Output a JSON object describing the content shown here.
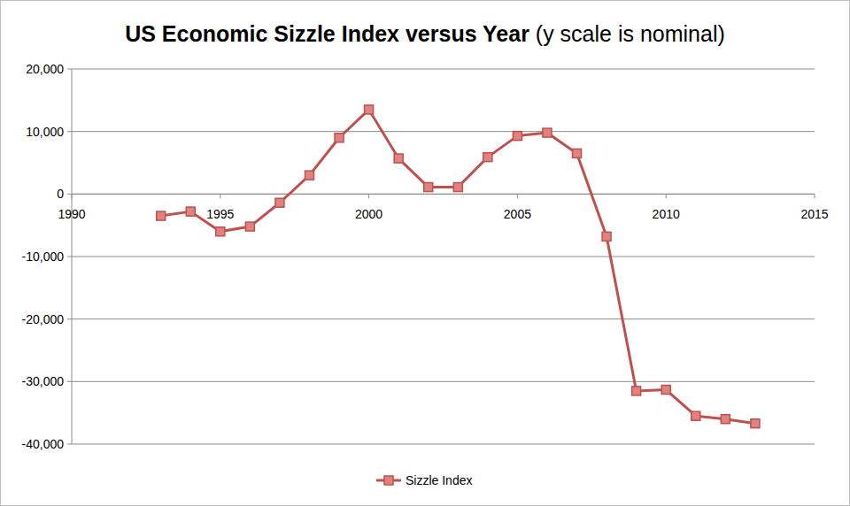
{
  "chart_data": {
    "type": "line",
    "title": "US Economic Sizzle Index versus Year",
    "subtitle": "(y scale is nominal)",
    "x": [
      1993,
      1994,
      1995,
      1996,
      1997,
      1998,
      1999,
      2000,
      2001,
      2002,
      2003,
      2004,
      2005,
      2006,
      2007,
      2008,
      2009,
      2010,
      2011,
      2012,
      2013
    ],
    "series": [
      {
        "name": "Sizzle Index",
        "color": "#c0504d",
        "marker": "square",
        "line_style": "solid",
        "values": [
          -3500,
          -2800,
          -6000,
          -5200,
          -1400,
          3000,
          9000,
          13500,
          5700,
          1100,
          1100,
          5900,
          9300,
          9800,
          6500,
          -6800,
          -31500,
          -31300,
          -35500,
          -36000,
          -36700
        ]
      }
    ],
    "xlim": [
      1990,
      2015
    ],
    "xticks": [
      1990,
      1995,
      2000,
      2005,
      2010,
      2015
    ],
    "ylim": [
      -40000,
      20000
    ],
    "yticks": [
      {
        "value": -40000,
        "label": "-40,000"
      },
      {
        "value": -30000,
        "label": "-30,000"
      },
      {
        "value": -20000,
        "label": "-20,000"
      },
      {
        "value": -10000,
        "label": "-10,000"
      },
      0,
      {
        "value": 10000,
        "label": "10,000"
      },
      {
        "value": 20000,
        "label": "20,000"
      }
    ],
    "grid": true,
    "legend": "bottom"
  }
}
